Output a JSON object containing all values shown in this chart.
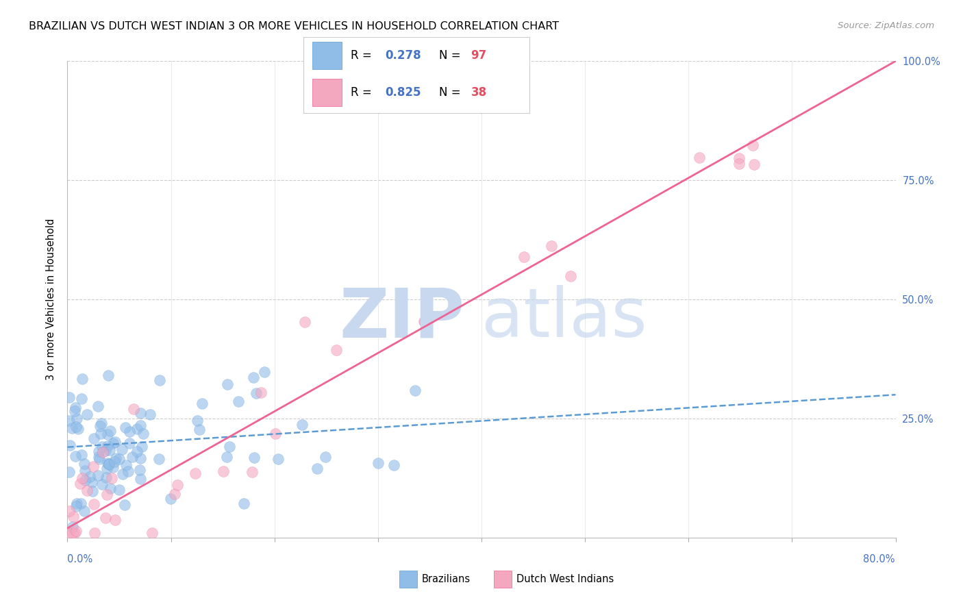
{
  "title": "BRAZILIAN VS DUTCH WEST INDIAN 3 OR MORE VEHICLES IN HOUSEHOLD CORRELATION CHART",
  "source": "Source: ZipAtlas.com",
  "ylabel": "3 or more Vehicles in Household",
  "legend_blue_R": "0.278",
  "legend_blue_N": "97",
  "legend_pink_R": "0.825",
  "legend_pink_N": "38",
  "blue_line_x": [
    0.0,
    80.0
  ],
  "blue_line_y": [
    19.0,
    30.0
  ],
  "pink_line_x": [
    0.0,
    80.0
  ],
  "pink_line_y": [
    2.0,
    100.0
  ],
  "xmin": 0.0,
  "xmax": 80.0,
  "ymin": 0.0,
  "ymax": 100.0,
  "blue_color": "#90bce8",
  "pink_color": "#f4a8c0",
  "blue_line_color": "#5b9bd5",
  "pink_line_color": "#f06292",
  "text_blue": "#4472c4",
  "text_red": "#e05060",
  "grid_color": "#cccccc",
  "background_color": "#ffffff",
  "n_blue": 97,
  "n_pink": 38,
  "seed": 12345
}
